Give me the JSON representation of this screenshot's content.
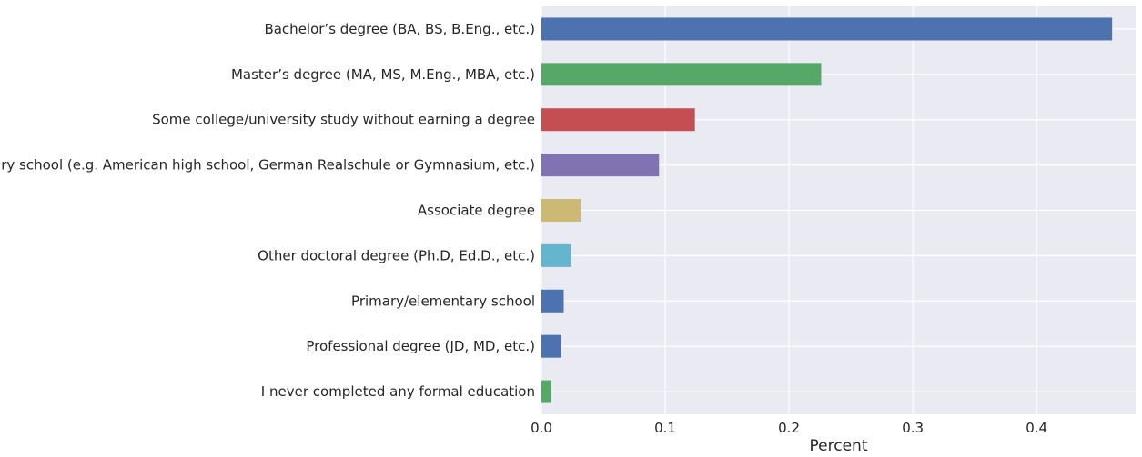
{
  "chart_data": {
    "type": "bar",
    "orientation": "horizontal",
    "categories": [
      "Bachelor’s degree (BA, BS, B.Eng., etc.)",
      "Master’s degree (MA, MS, M.Eng., MBA, etc.)",
      "Some college/university study without earning a degree",
      "Secondary school (e.g. American high school, German Realschule or Gymnasium, etc.)",
      "Associate degree",
      "Other doctoral degree (Ph.D, Ed.D., etc.)",
      "Primary/elementary school",
      "Professional degree (JD, MD, etc.)",
      "I never completed any formal education"
    ],
    "values": [
      0.461,
      0.226,
      0.124,
      0.095,
      0.032,
      0.024,
      0.018,
      0.016,
      0.008
    ],
    "colors": [
      "#4c72b0",
      "#55a868",
      "#c44e52",
      "#8172b2",
      "#ccb974",
      "#64b5cd",
      "#4c72b0",
      "#4c72b0",
      "#55a868"
    ],
    "title": "",
    "xlabel": "Percent",
    "ylabel": "",
    "xlim": [
      0,
      0.48
    ],
    "xticks": [
      0.0,
      0.1,
      0.2,
      0.3,
      0.4
    ],
    "xtick_labels": [
      "0.0",
      "0.1",
      "0.2",
      "0.3",
      "0.4"
    ],
    "grid": true,
    "background": "#eaeaf2",
    "grid_color": "#ffffff"
  }
}
